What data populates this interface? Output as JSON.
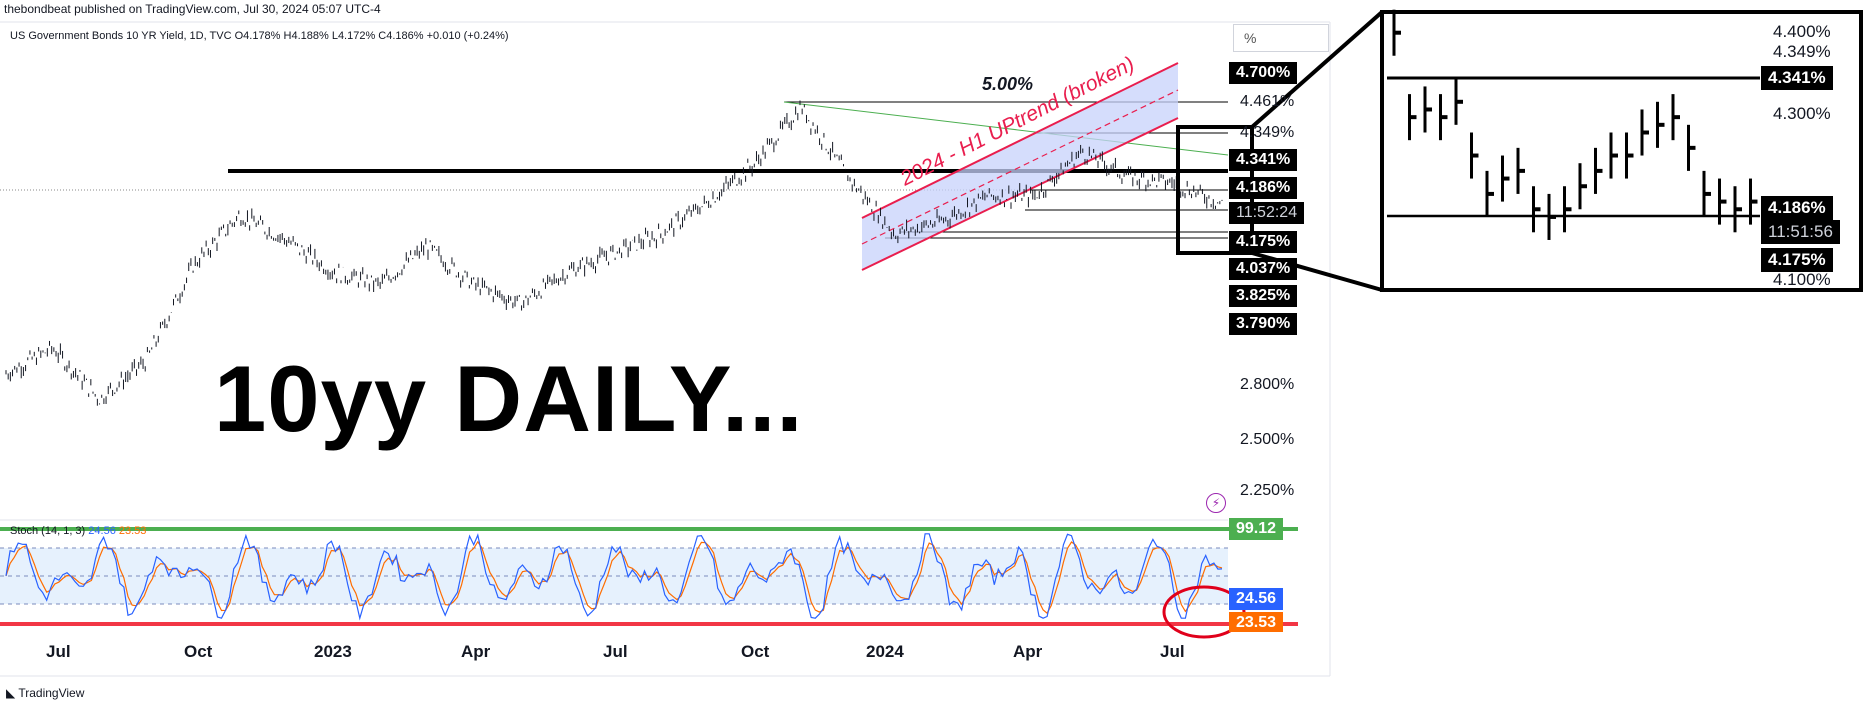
{
  "header": {
    "published": "thebondbeat published on TradingView.com, Jul 30, 2024 05:07 UTC-4",
    "symbol_line": "US Government Bonds 10 YR Yield, 1D, TVC  O4.178% H4.188% L4.172% C4.186% +0.010 (+0.24%)"
  },
  "scale_button": "%",
  "overlay_title": "10yy DAILY...",
  "footer": {
    "brand": "TradingView"
  },
  "annotations": {
    "channel_label": "2024 - H1 UPtrend (broken)",
    "fib_label": "5.00%"
  },
  "price_axis": {
    "plain_labels": [
      "4.461%",
      "4.349%",
      "2.800%",
      "2.500%",
      "2.250%"
    ],
    "black_tags": [
      "4.700%",
      "4.341%",
      "4.186%",
      "4.175%",
      "4.037%",
      "3.825%",
      "3.790%"
    ],
    "countdown": "11:52:24"
  },
  "stoch": {
    "label": "Stoch (14, 1, 3)",
    "k_value": "24.56",
    "d_value": "23.53",
    "upper_tag": "99.12"
  },
  "time_axis": [
    "Jul",
    "Oct",
    "2023",
    "Apr",
    "Jul",
    "Oct",
    "2024",
    "Apr",
    "Jul"
  ],
  "inset": {
    "axis_labels": [
      "4.400%",
      "4.349%",
      "4.300%",
      "4.100%"
    ],
    "black_tags": [
      "4.341%",
      "4.186%",
      "4.175%"
    ],
    "countdown": "11:51:56"
  },
  "colors": {
    "channel_red": "#e91e4e",
    "channel_fill": "#c7d2fb",
    "stoch_k": "#2962ff",
    "stoch_d": "#ff6d00",
    "stoch_upper": "#4caf50",
    "stoch_lower": "#f23645",
    "circle_red": "#e0001b"
  },
  "chart_data": {
    "type": "ohlc",
    "instrument": "US Government Bonds 10 YR Yield",
    "timeframe": "1D",
    "x": [
      "2022-05",
      "2022-06",
      "2022-07",
      "2022-08",
      "2022-09",
      "2022-10",
      "2022-11",
      "2022-12",
      "2023-01",
      "2023-02",
      "2023-03",
      "2023-04",
      "2023-05",
      "2023-06",
      "2023-07",
      "2023-08",
      "2023-09",
      "2023-10",
      "2023-11",
      "2023-12",
      "2024-01",
      "2024-02",
      "2024-03",
      "2024-04",
      "2024-05",
      "2024-06",
      "2024-07"
    ],
    "series": [
      {
        "values": [
          2.85,
          3.05,
          2.65,
          2.95,
          3.7,
          4.1,
          3.9,
          3.65,
          3.55,
          3.85,
          3.55,
          3.4,
          3.65,
          3.8,
          3.95,
          4.2,
          4.5,
          4.95,
          4.4,
          3.95,
          4.05,
          4.25,
          4.25,
          4.6,
          4.4,
          4.35,
          4.19
        ]
      }
    ],
    "last": {
      "open": 4.178,
      "high": 4.188,
      "low": 4.172,
      "close": 4.186,
      "change": 0.01,
      "change_pct": 0.24
    },
    "levels": [
      4.7,
      4.461,
      4.349,
      4.341,
      4.186,
      4.175,
      4.037,
      3.825,
      3.79
    ],
    "stoch": {
      "k": 24.56,
      "d": 23.53,
      "upper": 99.12
    }
  }
}
